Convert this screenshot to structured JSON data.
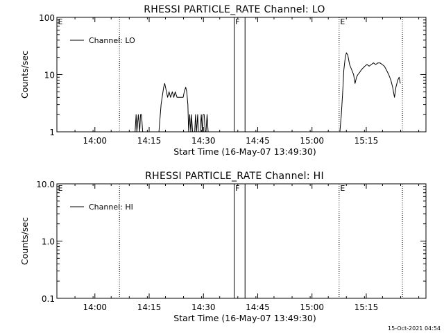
{
  "stamp": "15-Oct-2021 04:54",
  "chart_data": [
    {
      "type": "line",
      "title": "RHESSI PARTICLE_RATE Channel: LO",
      "xlabel": "Start Time (16-May-07 13:49:30)",
      "ylabel": "Counts/sec",
      "yscale": "log",
      "ylim": [
        1,
        100
      ],
      "yticks": [
        1,
        10,
        100
      ],
      "yticklabels": [
        "1",
        "10",
        "100"
      ],
      "xlim_minutes": [
        0,
        102
      ],
      "xticks_minutes": [
        10.5,
        25.5,
        40.5,
        55.5,
        70.5,
        85.5
      ],
      "xticklabels": [
        "14:00",
        "14:15",
        "14:30",
        "14:45",
        "15:00",
        "15:15"
      ],
      "legend": "top-left",
      "markers": [
        {
          "label": "E",
          "minute": 0.0,
          "style": "dotted",
          "show_line": false
        },
        {
          "label": "",
          "minute": 17.3,
          "style": "dotted",
          "show_line": true
        },
        {
          "label": "F",
          "minute": 49.0,
          "style": "solid",
          "show_line": true
        },
        {
          "label": "",
          "minute": 52.0,
          "style": "solid",
          "show_line": true
        },
        {
          "label": "E",
          "minute": 78.0,
          "style": "dotted",
          "show_line": true
        },
        {
          "label": "",
          "minute": 95.5,
          "style": "dotted",
          "show_line": true
        }
      ],
      "series": [
        {
          "name": "Channel: LO",
          "x": [
            21.6,
            21.9,
            22.1,
            22.5,
            22.9,
            23.1,
            23.4,
            23.7,
            28.2,
            28.8,
            29.5,
            29.8,
            30.3,
            30.6,
            31.0,
            31.4,
            31.9,
            32.3,
            32.7,
            33.2,
            33.7,
            34.3,
            34.9,
            35.2,
            35.6,
            35.9,
            36.2,
            36.4,
            36.7,
            37.0,
            37.2,
            37.5,
            37.8,
            38.1,
            38.3,
            38.6,
            38.9,
            39.1,
            39.4,
            39.6,
            39.9,
            40.2,
            40.4,
            40.7,
            41.0,
            41.2,
            41.5,
            41.8,
            42.0,
            78.2,
            78.6,
            79.0,
            79.3,
            79.7,
            80.0,
            80.4,
            80.9,
            81.5,
            82.0,
            82.4,
            82.8,
            83.2,
            83.7,
            84.1,
            84.6,
            85.1,
            85.7,
            86.3,
            86.9,
            87.5,
            88.1,
            88.7,
            89.3,
            89.9,
            90.5,
            91.1,
            91.7,
            92.3,
            92.8,
            93.3,
            93.7,
            94.2,
            94.6,
            94.9
          ],
          "y": [
            1,
            2,
            1,
            2,
            1,
            2,
            2,
            1,
            1,
            3,
            6,
            7,
            5,
            4,
            5,
            4,
            5,
            4,
            5,
            4,
            4,
            4,
            4,
            5,
            6,
            5,
            3,
            1,
            2,
            1,
            2,
            1,
            1,
            1,
            2,
            1,
            2,
            1,
            1,
            1,
            2,
            1,
            2,
            2,
            1,
            1,
            2,
            1,
            1,
            1,
            2,
            5,
            12,
            20,
            24,
            22,
            15,
            12,
            10,
            7,
            9,
            10,
            11,
            12,
            13,
            14,
            15,
            14,
            15,
            16,
            15,
            16,
            16,
            15,
            14,
            12,
            10,
            8,
            6,
            4,
            6,
            8,
            9,
            7
          ]
        }
      ]
    },
    {
      "type": "line",
      "title": "RHESSI PARTICLE_RATE Channel: HI",
      "xlabel": "Start Time (16-May-07 13:49:30)",
      "ylabel": "Counts/sec",
      "yscale": "log",
      "ylim": [
        0.1,
        10
      ],
      "yticks": [
        0.1,
        1,
        10
      ],
      "yticklabels": [
        "0.1",
        "1.0",
        "10.0"
      ],
      "xlim_minutes": [
        0,
        102
      ],
      "xticks_minutes": [
        10.5,
        25.5,
        40.5,
        55.5,
        70.5,
        85.5
      ],
      "xticklabels": [
        "14:00",
        "14:15",
        "14:30",
        "14:45",
        "15:00",
        "15:15"
      ],
      "legend": "top-left",
      "markers": [
        {
          "label": "E",
          "minute": 0.0,
          "style": "dotted",
          "show_line": false
        },
        {
          "label": "",
          "minute": 17.3,
          "style": "dotted",
          "show_line": true
        },
        {
          "label": "F",
          "minute": 49.0,
          "style": "solid",
          "show_line": true
        },
        {
          "label": "",
          "minute": 52.0,
          "style": "solid",
          "show_line": true
        },
        {
          "label": "E",
          "minute": 78.0,
          "style": "dotted",
          "show_line": true
        },
        {
          "label": "",
          "minute": 95.5,
          "style": "dotted",
          "show_line": true
        }
      ],
      "series": [
        {
          "name": "Channel: HI",
          "x": [],
          "y": []
        }
      ]
    }
  ]
}
